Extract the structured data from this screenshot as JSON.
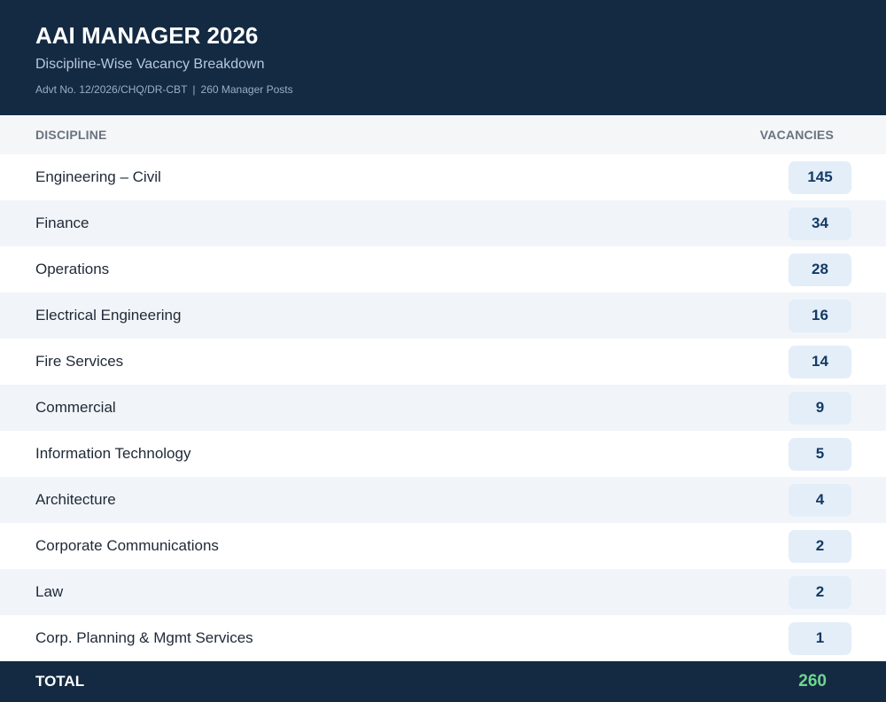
{
  "header": {
    "title": "AAI MANAGER 2026",
    "subtitle": "Discipline-Wise Vacancy Breakdown",
    "advt": "Advt No. 12/2026/CHQ/DR-CBT",
    "separator": "|",
    "posts": "260 Manager Posts"
  },
  "table": {
    "col_discipline": "DISCIPLINE",
    "col_vacancies": "VACANCIES",
    "rows": [
      {
        "discipline": "Engineering – Civil",
        "vacancies": "145"
      },
      {
        "discipline": "Finance",
        "vacancies": "34"
      },
      {
        "discipline": "Operations",
        "vacancies": "28"
      },
      {
        "discipline": "Electrical Engineering",
        "vacancies": "16"
      },
      {
        "discipline": "Fire Services",
        "vacancies": "14"
      },
      {
        "discipline": "Commercial",
        "vacancies": "9"
      },
      {
        "discipline": "Information Technology",
        "vacancies": "5"
      },
      {
        "discipline": "Architecture",
        "vacancies": "4"
      },
      {
        "discipline": "Corporate Communications",
        "vacancies": "2"
      },
      {
        "discipline": "Law",
        "vacancies": "2"
      },
      {
        "discipline": "Corp. Planning & Mgmt Services",
        "vacancies": "1"
      }
    ],
    "total_label": "TOTAL",
    "total_value": "260"
  },
  "colors": {
    "header_bg": "#142a42",
    "badge_bg": "#e4eef9",
    "badge_text": "#143a64",
    "total_value": "#6fd68f"
  }
}
